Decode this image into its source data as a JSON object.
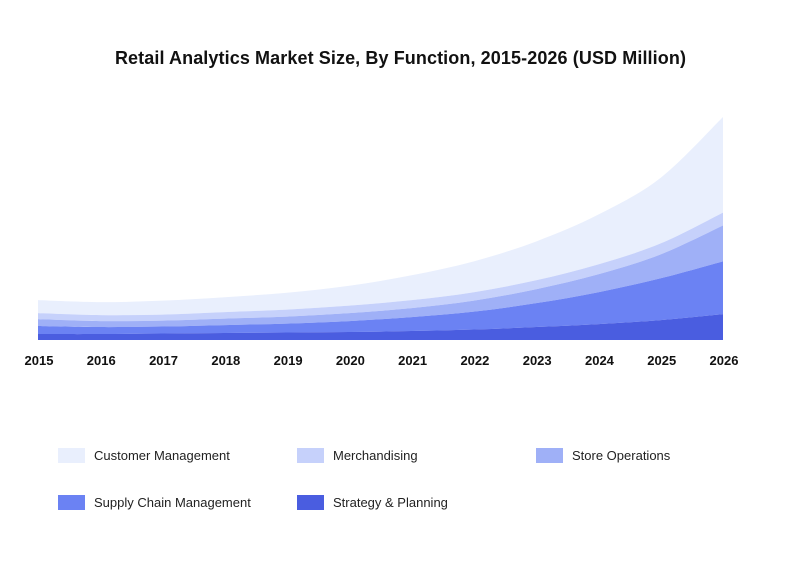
{
  "chart_data": {
    "type": "area",
    "stacked": true,
    "title": "Retail Analytics Market Size, By Function, 2015-2026 (USD Million)",
    "xlabel": "",
    "ylabel": "",
    "x": [
      "2015",
      "2016",
      "2017",
      "2018",
      "2019",
      "2020",
      "2021",
      "2022",
      "2023",
      "2024",
      "2025",
      "2026"
    ],
    "ylim": [
      0,
      225
    ],
    "grid": false,
    "legend_position": "bottom",
    "series": [
      {
        "name": "Strategy & Planning",
        "color": "#4a5de0",
        "values": [
          6,
          6,
          6.5,
          7,
          7.5,
          8,
          9,
          10.5,
          13,
          16,
          20,
          26
        ]
      },
      {
        "name": "Supply Chain Management",
        "color": "#6b82f3",
        "values": [
          8,
          7,
          7,
          8,
          9,
          11,
          14,
          18,
          24,
          32,
          42,
          53
        ]
      },
      {
        "name": "Store Operations",
        "color": "#9fb0f7",
        "values": [
          7,
          6,
          6,
          6.5,
          7,
          8,
          9,
          11,
          14,
          18,
          24,
          36
        ]
      },
      {
        "name": "Merchandising",
        "color": "#c6d1fb",
        "values": [
          6,
          6,
          6,
          6.5,
          7,
          7.5,
          8,
          8.5,
          9,
          10,
          11,
          13
        ]
      },
      {
        "name": "Customer Management",
        "color": "#e9effd",
        "values": [
          13,
          13,
          14,
          15,
          17,
          20,
          25,
          31,
          39,
          50,
          66,
          96
        ]
      }
    ]
  },
  "legend_rows": [
    [
      "Customer Management",
      "Merchandising",
      "Store Operations"
    ],
    [
      "Supply Chain Management",
      "Strategy & Planning"
    ]
  ]
}
